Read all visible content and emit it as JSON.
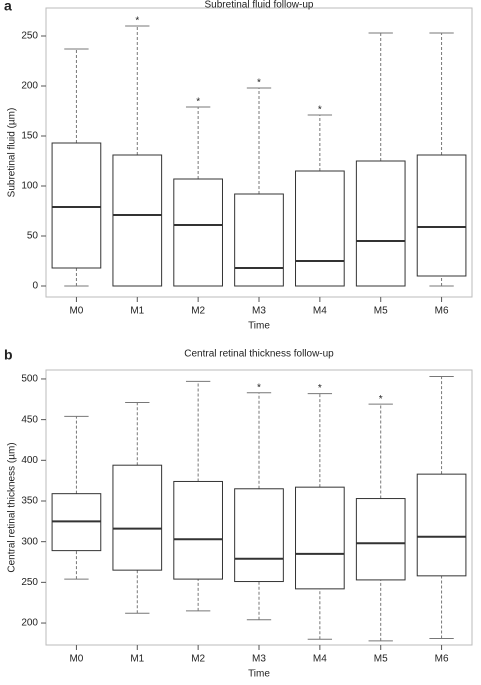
{
  "chart_data": [
    {
      "type": "box",
      "panel": "a",
      "title": "Subretinal fluid follow-up",
      "x_label": "Time",
      "y_label": "Subretinal fluid (µm)",
      "categories": [
        "M0",
        "M1",
        "M2",
        "M3",
        "M4",
        "M5",
        "M6"
      ],
      "boxes": [
        {
          "min": 0,
          "q1": 18,
          "median": 79,
          "q3": 143,
          "max": 237
        },
        {
          "min": 0,
          "q1": 0,
          "median": 71,
          "q3": 131,
          "max": 260
        },
        {
          "min": 0,
          "q1": 0,
          "median": 61,
          "q3": 107,
          "max": 179
        },
        {
          "min": 0,
          "q1": 0,
          "median": 18,
          "q3": 92,
          "max": 198
        },
        {
          "min": 0,
          "q1": 0,
          "median": 25,
          "q3": 115,
          "max": 171
        },
        {
          "min": 0,
          "q1": 0,
          "median": 45,
          "q3": 125,
          "max": 253
        },
        {
          "min": 0,
          "q1": 10,
          "median": 59,
          "q3": 131,
          "max": 253
        }
      ],
      "annotations": [
        null,
        "*",
        "*",
        "*",
        "*",
        null,
        null
      ],
      "ylim": [
        -11,
        278
      ],
      "yticks": [
        0,
        50,
        100,
        150,
        200,
        250
      ],
      "color": "#333333",
      "whisker_color": "#777777"
    },
    {
      "type": "box",
      "panel": "b",
      "title": "Central retinal thickness follow-up",
      "x_label": "Time",
      "y_label": "Central retinal thickness (µm)",
      "categories": [
        "M0",
        "M1",
        "M2",
        "M3",
        "M4",
        "M5",
        "M6"
      ],
      "boxes": [
        {
          "min": 254,
          "q1": 289,
          "median": 325,
          "q3": 359,
          "max": 454
        },
        {
          "min": 212,
          "q1": 265,
          "median": 316,
          "q3": 394,
          "max": 471
        },
        {
          "min": 215,
          "q1": 254,
          "median": 303,
          "q3": 374,
          "max": 497
        },
        {
          "min": 204,
          "q1": 251,
          "median": 279,
          "q3": 365,
          "max": 483
        },
        {
          "min": 180,
          "q1": 242,
          "median": 285,
          "q3": 367,
          "max": 482
        },
        {
          "min": 178,
          "q1": 253,
          "median": 298,
          "q3": 353,
          "max": 469
        },
        {
          "min": 181,
          "q1": 258,
          "median": 306,
          "q3": 383,
          "max": 503
        }
      ],
      "annotations": [
        null,
        null,
        null,
        "*",
        "*",
        "*",
        null
      ],
      "ylim": [
        173,
        511
      ],
      "yticks": [
        200,
        250,
        300,
        350,
        400,
        450,
        500
      ],
      "color": "#333333",
      "whisker_color": "#777777"
    }
  ]
}
